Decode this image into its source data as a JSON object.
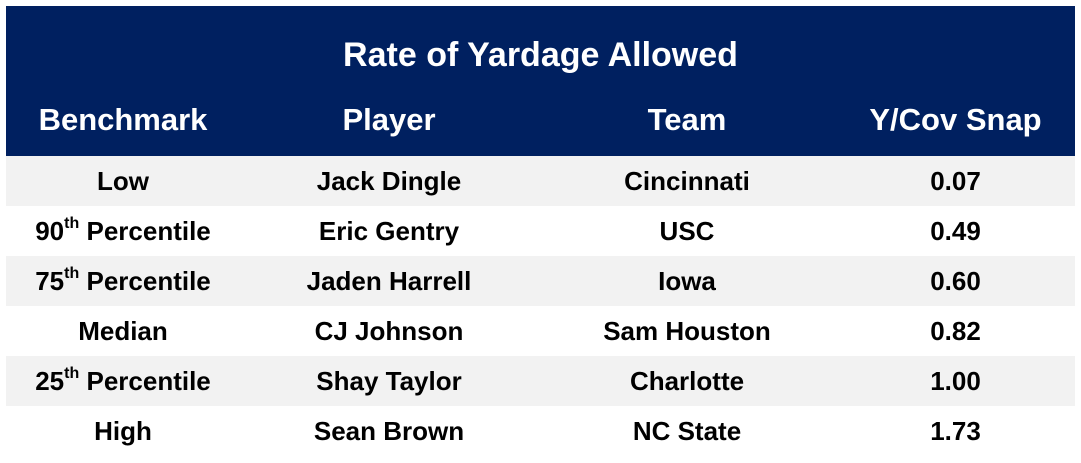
{
  "chart_data": {
    "type": "table",
    "title": "Rate of Yardage Allowed",
    "columns": [
      "Benchmark",
      "Player",
      "Team",
      "Y/Cov Snap"
    ],
    "rows": [
      {
        "benchmark": "Low",
        "ordinal_sup": "",
        "player": "Jack Dingle",
        "team": "Cincinnati",
        "value": "0.07"
      },
      {
        "benchmark": "90",
        "ordinal_sup": "th",
        "suffix": " Percentile",
        "player": "Eric Gentry",
        "team": "USC",
        "value": "0.49"
      },
      {
        "benchmark": "75",
        "ordinal_sup": "th",
        "suffix": " Percentile",
        "player": "Jaden Harrell",
        "team": "Iowa",
        "value": "0.60"
      },
      {
        "benchmark": "Median",
        "ordinal_sup": "",
        "player": "CJ Johnson",
        "team": "Sam Houston",
        "value": "0.82"
      },
      {
        "benchmark": "25",
        "ordinal_sup": "th",
        "suffix": " Percentile",
        "player": "Shay Taylor",
        "team": "Charlotte",
        "value": "1.00"
      },
      {
        "benchmark": "High",
        "ordinal_sup": "",
        "player": "Sean Brown",
        "team": "NC State",
        "value": "1.73"
      }
    ]
  },
  "colors": {
    "header_bg": "#002060",
    "header_text": "#ffffff",
    "band_shade": "#f2f2f2"
  }
}
